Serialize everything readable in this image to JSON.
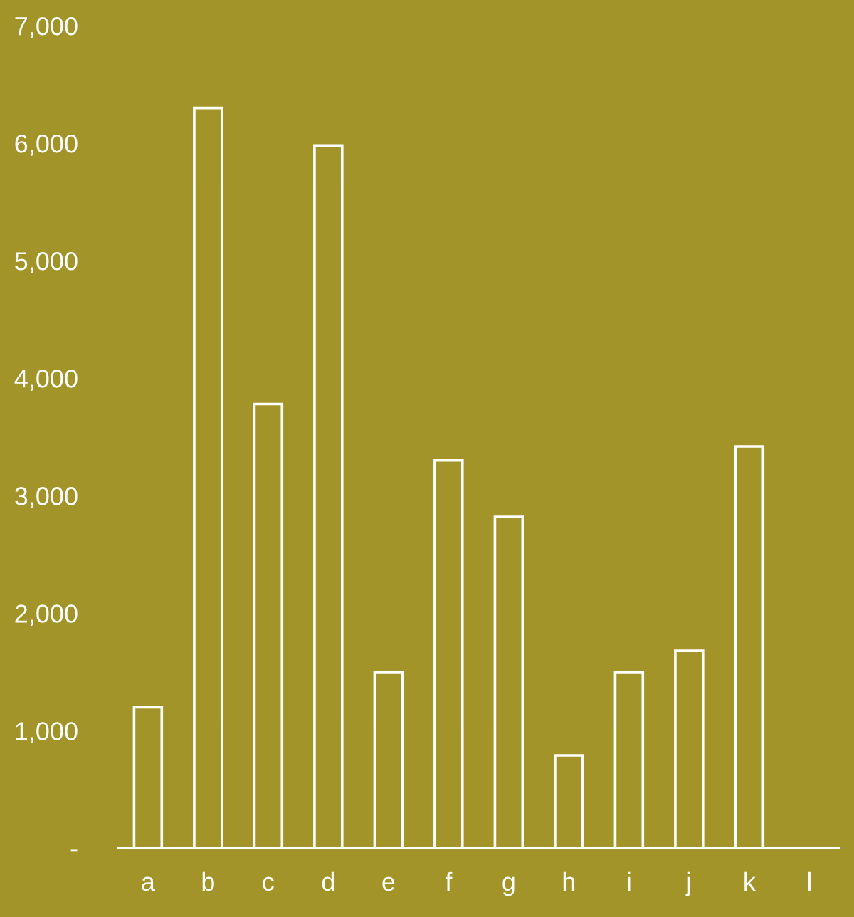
{
  "chart_data": {
    "type": "bar",
    "categories": [
      "a",
      "b",
      "c",
      "d",
      "e",
      "f",
      "g",
      "h",
      "i",
      "j",
      "k",
      "l"
    ],
    "values": [
      1200,
      6300,
      3780,
      5980,
      1500,
      3300,
      2820,
      790,
      1500,
      1680,
      3420,
      0
    ],
    "color": "#ffffff",
    "ylim": [
      0,
      7000
    ],
    "yticks": [
      {
        "value": 0,
        "label": "-"
      },
      {
        "value": 1000,
        "label": "1,000"
      },
      {
        "value": 2000,
        "label": "2,000"
      },
      {
        "value": 3000,
        "label": "3,000"
      },
      {
        "value": 4000,
        "label": "4,000"
      },
      {
        "value": 5000,
        "label": "5,000"
      },
      {
        "value": 6000,
        "label": "6,000"
      },
      {
        "value": 7000,
        "label": "7,000"
      }
    ],
    "grid": false
  }
}
